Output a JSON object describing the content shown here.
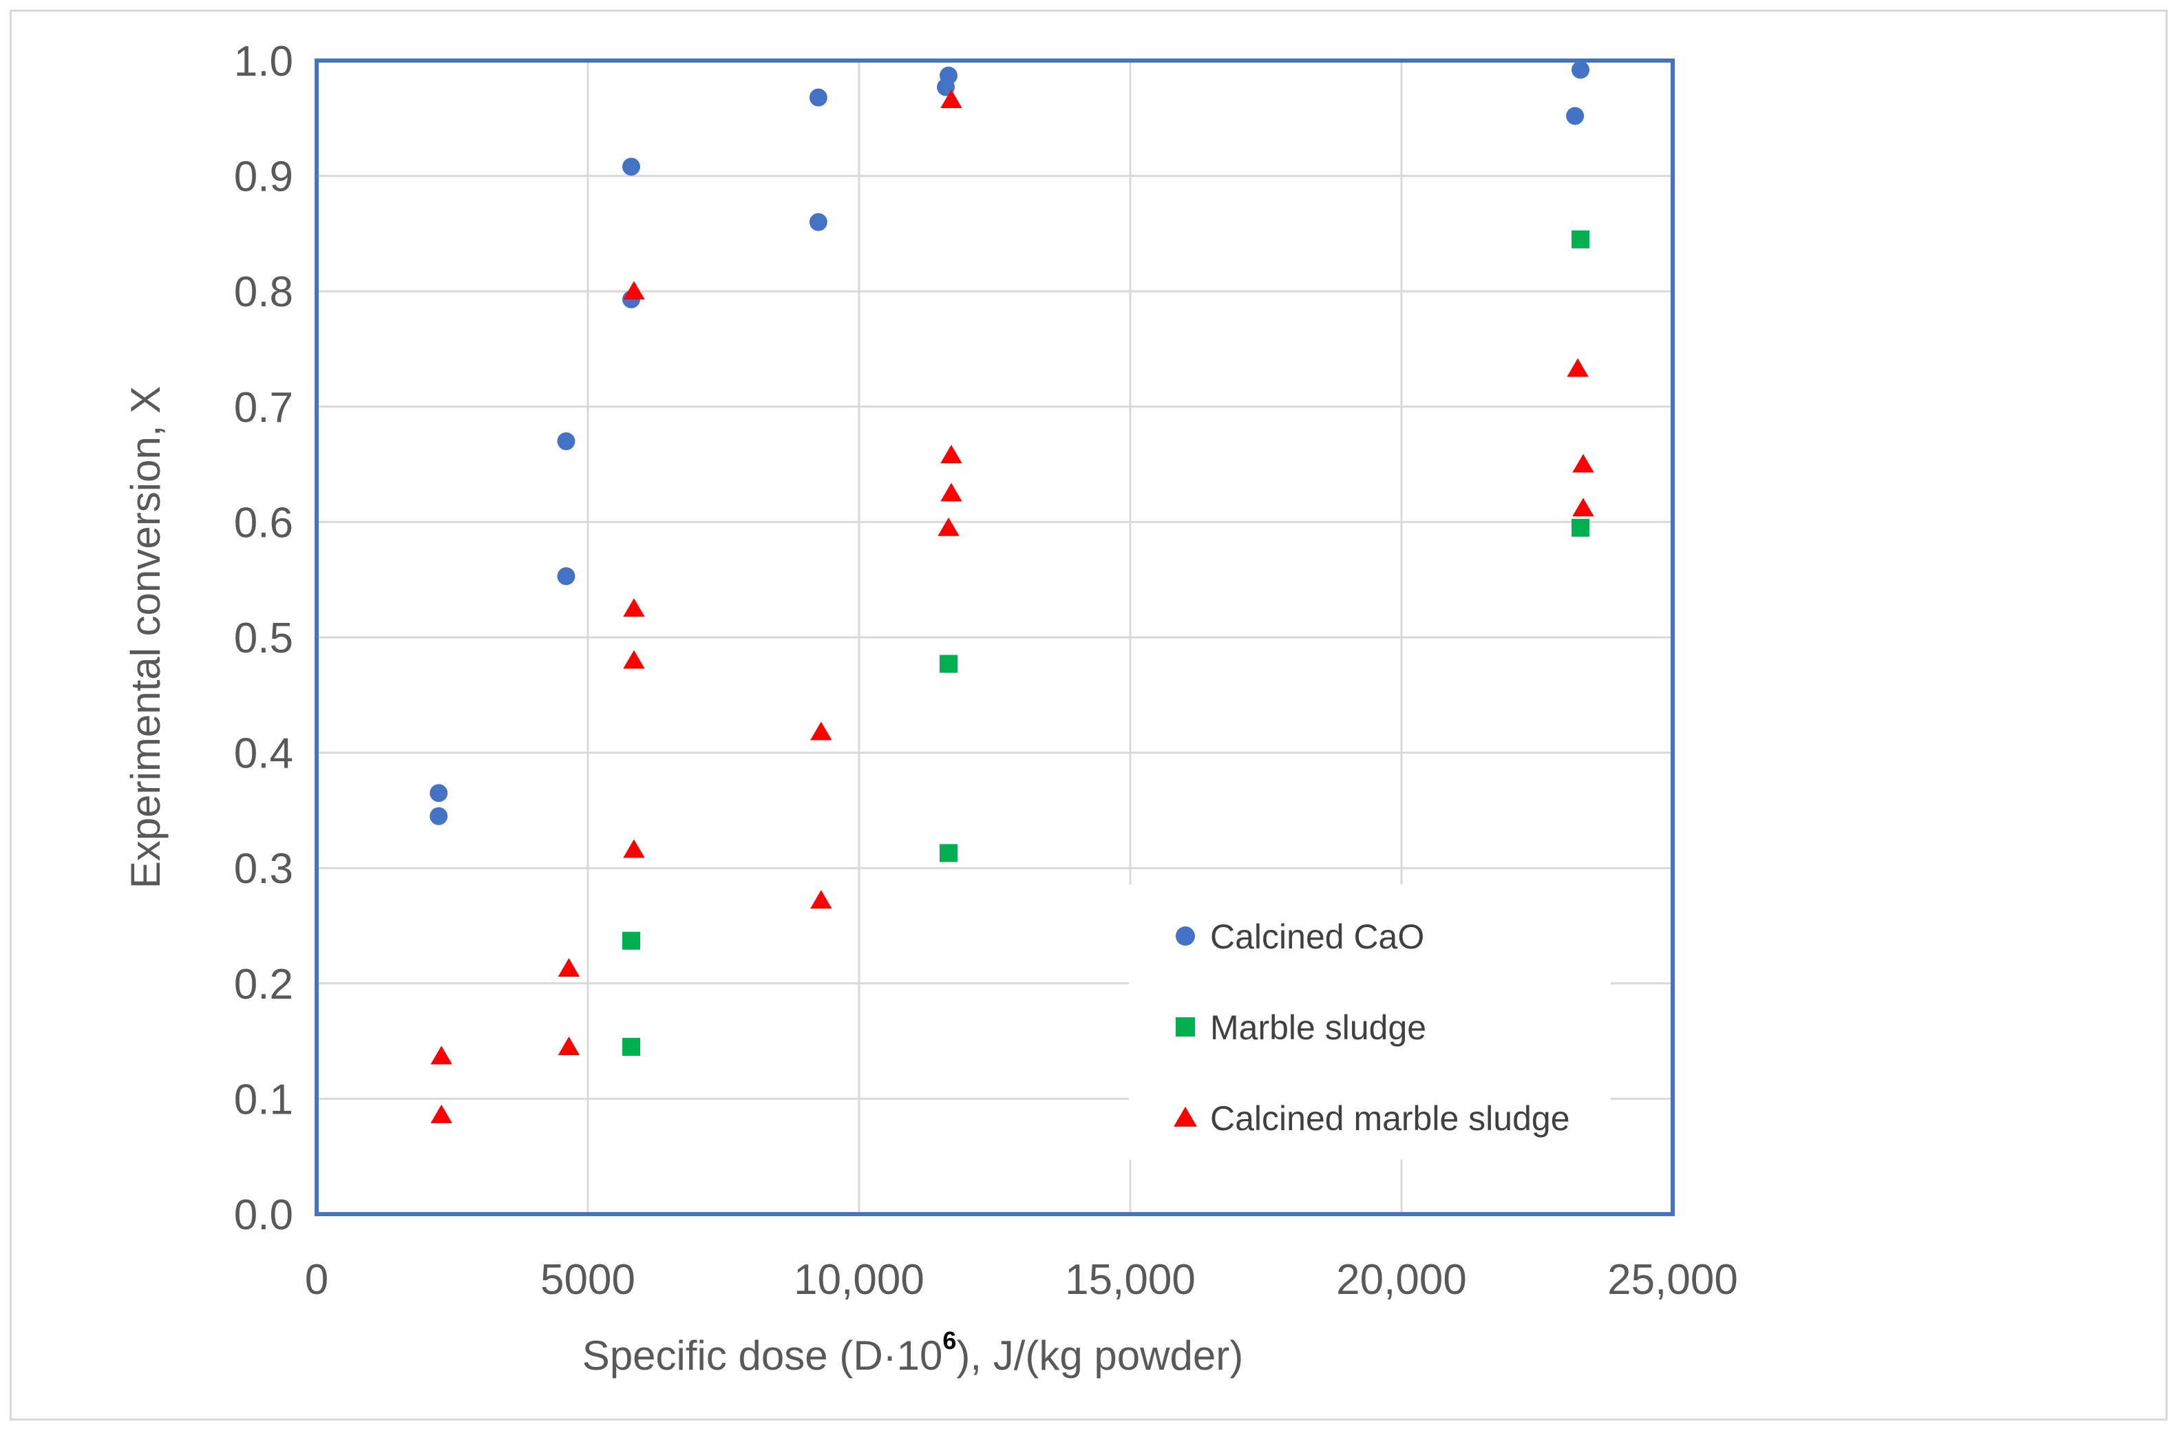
{
  "chart_data": {
    "type": "scatter",
    "title": "",
    "xlabel": "Specific dose (D·10⁶), J/(kg powder)",
    "xlabel_parts": {
      "before": "Specific dose (D·10",
      "superscript": "6",
      "after": "), J/(kg powder)"
    },
    "ylabel": "Experimental conversion, X",
    "xlim": [
      0,
      25000
    ],
    "ylim": [
      0,
      1.0
    ],
    "x_ticks": [
      0,
      5000,
      10000,
      15000,
      20000,
      25000
    ],
    "x_tick_labels": [
      "0",
      "5000",
      "10,000",
      "15,000",
      "20,000",
      "25,000"
    ],
    "y_ticks": [
      0,
      0.1,
      0.2,
      0.3,
      0.4,
      0.5,
      0.6,
      0.7,
      0.8,
      0.9,
      1.0
    ],
    "y_tick_labels": [
      "0.0",
      "0.1",
      "0.2",
      "0.3",
      "0.4",
      "0.5",
      "0.6",
      "0.7",
      "0.8",
      "0.9",
      "1.0"
    ],
    "grid": true,
    "legend_position": "bottom-right inside",
    "series": [
      {
        "name": "Calcined CaO",
        "marker": "circle",
        "color": "#4472c4",
        "points": [
          [
            2250,
            0.365
          ],
          [
            2250,
            0.345
          ],
          [
            4600,
            0.67
          ],
          [
            4600,
            0.553
          ],
          [
            5800,
            0.908
          ],
          [
            5800,
            0.793
          ],
          [
            9250,
            0.968
          ],
          [
            9250,
            0.86
          ],
          [
            11600,
            0.977
          ],
          [
            11650,
            0.987
          ],
          [
            23200,
            0.952
          ],
          [
            23300,
            0.992
          ]
        ]
      },
      {
        "name": "Marble sludge",
        "marker": "square",
        "color": "#00b050",
        "points": [
          [
            5800,
            0.237
          ],
          [
            5800,
            0.145
          ],
          [
            11650,
            0.477
          ],
          [
            11650,
            0.313
          ],
          [
            23300,
            0.845
          ],
          [
            23300,
            0.595
          ]
        ]
      },
      {
        "name": "Calcined marble sludge",
        "marker": "triangle",
        "color": "#ff0000",
        "points": [
          [
            2300,
            0.137
          ],
          [
            2300,
            0.086
          ],
          [
            4650,
            0.213
          ],
          [
            4650,
            0.145
          ],
          [
            5850,
            0.8
          ],
          [
            5850,
            0.525
          ],
          [
            5850,
            0.48
          ],
          [
            5850,
            0.316
          ],
          [
            9300,
            0.418
          ],
          [
            9300,
            0.272
          ],
          [
            11700,
            0.966
          ],
          [
            11700,
            0.658
          ],
          [
            11700,
            0.625
          ],
          [
            11650,
            0.595
          ],
          [
            23250,
            0.733
          ],
          [
            23350,
            0.65
          ],
          [
            23350,
            0.612
          ]
        ]
      }
    ]
  }
}
